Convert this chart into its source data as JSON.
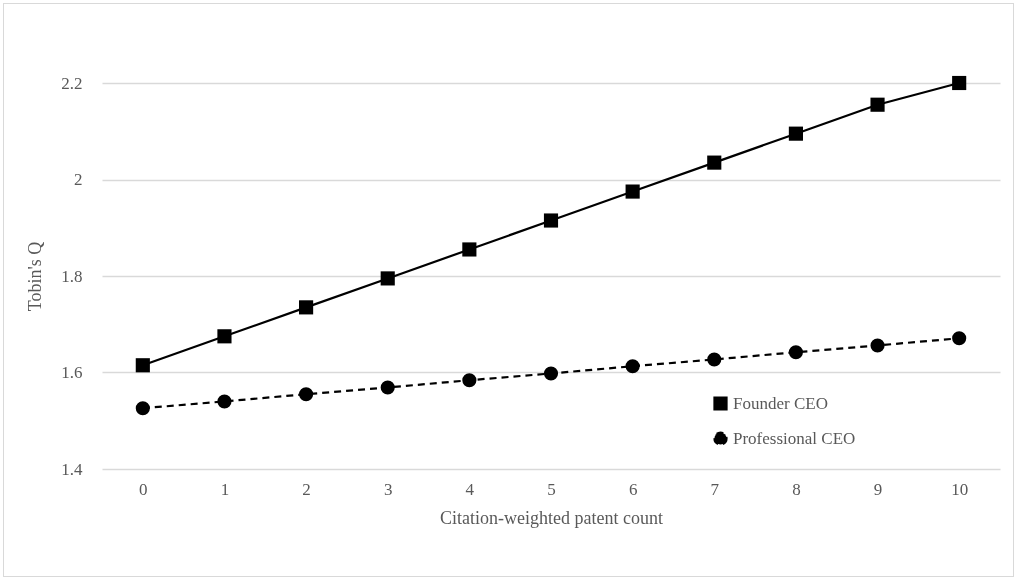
{
  "chart_data": {
    "type": "line",
    "xlabel": "Citation-weighted patent count",
    "ylabel": "Tobin's Q",
    "categories": [
      "0",
      "1",
      "2",
      "3",
      "4",
      "5",
      "6",
      "7",
      "8",
      "9",
      "10"
    ],
    "series": [
      {
        "name": "Founder CEO",
        "color": "#000000",
        "marker": "square",
        "line_style": "solid",
        "values": [
          1.615,
          1.675,
          1.735,
          1.795,
          1.855,
          1.915,
          1.975,
          2.035,
          2.095,
          2.155,
          2.2
        ]
      },
      {
        "name": "Professional CEO",
        "color": "#000000",
        "marker": "circle",
        "line_style": "dashed",
        "values": [
          1.526,
          1.54,
          1.555,
          1.569,
          1.584,
          1.598,
          1.613,
          1.627,
          1.642,
          1.656,
          1.671
        ]
      }
    ],
    "ylim": [
      1.4,
      2.2
    ],
    "yticks": [
      1.4,
      1.6,
      1.8,
      2,
      2.2
    ],
    "grid": "y",
    "legend": "bottom right"
  }
}
